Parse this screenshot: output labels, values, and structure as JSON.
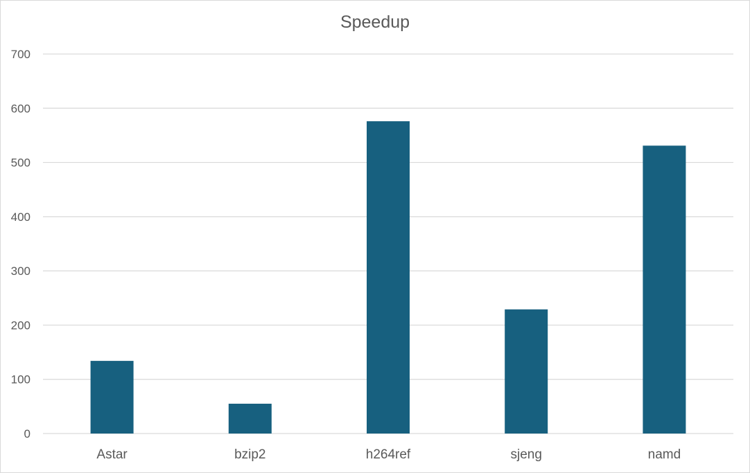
{
  "chart_data": {
    "type": "bar",
    "title": "Speedup",
    "xlabel": "",
    "ylabel": "",
    "categories": [
      "Astar",
      "bzip2",
      "h264ref",
      "sjeng",
      "namd"
    ],
    "values": [
      134,
      55,
      576,
      229,
      531
    ],
    "ylim": [
      0,
      700
    ],
    "yticks": [
      "0",
      "100",
      "200",
      "300",
      "400",
      "500",
      "600",
      "700"
    ],
    "grid": true,
    "legend": "none",
    "bar_color": "#17607f",
    "grid_color": "#d9d9d9"
  }
}
